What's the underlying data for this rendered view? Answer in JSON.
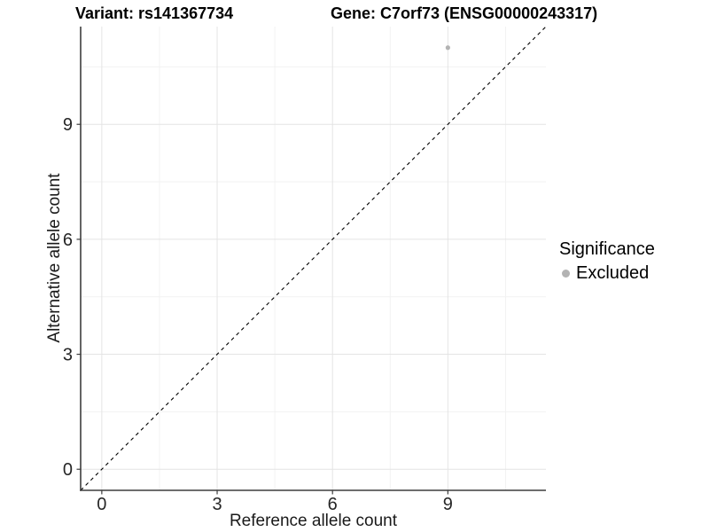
{
  "chart_data": {
    "type": "scatter",
    "titles": [
      "Variant: rs141367734",
      "Gene: C7orf73 (ENSG00000243317)"
    ],
    "xlabel": "Reference allele count",
    "ylabel": "Alternative allele count",
    "xlim": [
      -0.55,
      11.55
    ],
    "ylim": [
      -0.55,
      11.55
    ],
    "x_ticks": [
      0,
      3,
      6,
      9
    ],
    "y_ticks": [
      0,
      3,
      6,
      9
    ],
    "x_minor_ticks": [
      1.5,
      4.5,
      7.5,
      10.5
    ],
    "y_minor_ticks": [
      1.5,
      4.5,
      7.5,
      10.5
    ],
    "grid": true,
    "legend_position": "right",
    "series": [
      {
        "name": "Excluded",
        "color": "#b3b3b3",
        "points": [
          {
            "x": 9,
            "y": 11
          }
        ]
      }
    ],
    "reference_line": {
      "slope": 1,
      "intercept": 0,
      "linetype": "dashed",
      "color": "#000000"
    },
    "colors": {
      "background": "#ffffff",
      "axis_line": "#3d3d3d",
      "grid_major": "#e4e4e4",
      "grid_minor": "#f2f2f2",
      "tick_label": "#262626"
    }
  },
  "legend": {
    "title": "Significance",
    "items": [
      {
        "label": "Excluded",
        "color": "#b3b3b3"
      }
    ]
  }
}
